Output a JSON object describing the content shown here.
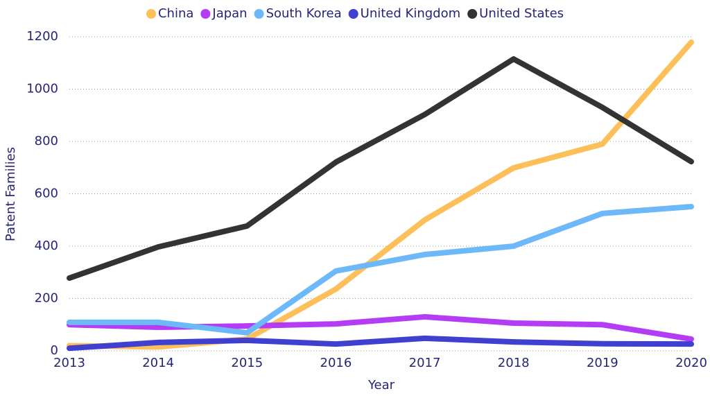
{
  "chart_data": {
    "type": "line",
    "x": [
      2013,
      2014,
      2015,
      2016,
      2017,
      2018,
      2019,
      2020
    ],
    "xlim": [
      2013,
      2020
    ],
    "xticks": [
      2013,
      2014,
      2015,
      2016,
      2017,
      2018,
      2019,
      2020
    ],
    "ylim": [
      0,
      1200
    ],
    "yticks": [
      0,
      200,
      400,
      600,
      800,
      1000,
      1200
    ],
    "x_label": "Year",
    "y_label": "Patent Families",
    "grid": true,
    "legend": "top",
    "series": [
      {
        "name": "China",
        "color": "#fdbf5a",
        "values": [
          20,
          15,
          45,
          236,
          500,
          699,
          790,
          1179
        ]
      },
      {
        "name": "Japan",
        "color": "#b43cf5",
        "values": [
          100,
          90,
          95,
          103,
          130,
          106,
          100,
          45
        ]
      },
      {
        "name": "South Korea",
        "color": "#6cb8f9",
        "values": [
          109,
          109,
          69,
          305,
          368,
          400,
          525,
          551
        ]
      },
      {
        "name": "United Kingdom",
        "color": "#3f3fd0",
        "values": [
          10,
          32,
          40,
          26,
          48,
          34,
          27,
          26
        ]
      },
      {
        "name": "United States",
        "color": "#333333",
        "values": [
          278,
          397,
          477,
          721,
          903,
          1115,
          930,
          723
        ]
      }
    ]
  }
}
